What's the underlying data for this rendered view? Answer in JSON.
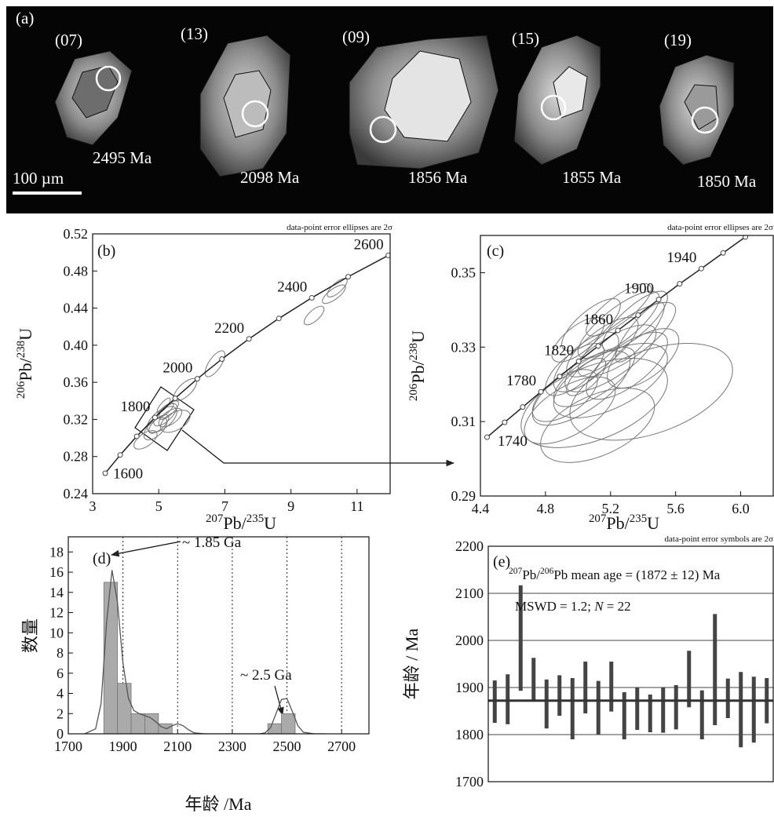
{
  "cl_image": {
    "panel_label": "(a)",
    "scale_bar": "100 µm",
    "grains": [
      {
        "spot": "(07)",
        "age": "2495 Ma"
      },
      {
        "spot": "(13)",
        "age": "2098 Ma"
      },
      {
        "spot": "(09)",
        "age": "1856 Ma"
      },
      {
        "spot": "(15)",
        "age": "1855 Ma"
      },
      {
        "spot": "(19)",
        "age": "1850 Ma"
      }
    ]
  },
  "chart_data": [
    {
      "type": "concordia",
      "panel_label": "(b)",
      "note": "data-point error ellipses are 2σ",
      "x_label": [
        {
          "text": "207",
          "sup": true
        },
        {
          "text": "Pb/"
        },
        {
          "text": "235",
          "sup": true
        },
        {
          "text": "U"
        }
      ],
      "y_label": [
        {
          "text": "206",
          "sup": true
        },
        {
          "text": "Pb/"
        },
        {
          "text": "238",
          "sup": true
        },
        {
          "text": "U"
        }
      ],
      "xlim": [
        3,
        12
      ],
      "xticks": [
        3,
        5,
        7,
        9,
        11
      ],
      "ylim": [
        0.24,
        0.52
      ],
      "yticks": [
        0.24,
        0.28,
        0.32,
        0.36,
        {
          "value": 0.4,
          "label": "0.40"
        },
        0.44,
        0.48,
        0.52
      ],
      "concordia": {
        "x": [
          3.381,
          3.834,
          4.335,
          4.887,
          5.496,
          6.168,
          6.911,
          7.729,
          8.633,
          9.63,
          10.73,
          11.944
        ],
        "y": [
          0.262,
          0.2817,
          0.3018,
          0.3221,
          0.3428,
          0.3638,
          0.3851,
          0.4068,
          0.4288,
          0.4511,
          0.4738,
          0.4968
        ],
        "labels": [
          null,
          1600,
          null,
          1800,
          null,
          2000,
          null,
          2200,
          null,
          2400,
          null,
          2600
        ]
      },
      "ellipses": {
        "x": [
          5.2,
          5.1,
          5.3,
          5.0,
          5.2,
          5.35,
          5.15,
          4.9,
          5.5,
          4.6,
          5.8,
          6.7,
          9.7,
          10.3,
          10.4
        ],
        "y": [
          0.325,
          0.32,
          0.33,
          0.315,
          0.33,
          0.322,
          0.335,
          0.31,
          0.318,
          0.298,
          0.352,
          0.38,
          0.432,
          0.455,
          0.462
        ],
        "sx": [
          0.35,
          0.45,
          0.3,
          0.3,
          0.25,
          0.35,
          0.2,
          0.35,
          0.45,
          0.35,
          0.35,
          0.3,
          0.3,
          0.35,
          0.3
        ],
        "sy": [
          0.012,
          0.014,
          0.01,
          0.01,
          0.008,
          0.01,
          0.008,
          0.012,
          0.012,
          0.01,
          0.012,
          0.014,
          0.01,
          0.01,
          0.01
        ],
        "rho": [
          0.7,
          0.6,
          0.75,
          0.7,
          0.8,
          0.6,
          0.8,
          0.6,
          0.5,
          0.6,
          0.7,
          0.7,
          0.7,
          0.75,
          0.75
        ]
      },
      "color": "#777777"
    },
    {
      "type": "concordia",
      "panel_label": "(c)",
      "note": "data-point error ellipses are 2σ",
      "x_label": [
        {
          "text": "207",
          "sup": true
        },
        {
          "text": "Pb/"
        },
        {
          "text": "235",
          "sup": true
        },
        {
          "text": "U"
        }
      ],
      "y_label": [
        {
          "text": "206",
          "sup": true
        },
        {
          "text": "Pb/"
        },
        {
          "text": "238",
          "sup": true
        },
        {
          "text": "U"
        }
      ],
      "xlim": [
        4.4,
        6.2
      ],
      "xticks": [
        4.4,
        4.8,
        5.2,
        5.6,
        {
          "value": 6,
          "label": "6.0"
        }
      ],
      "ylim": [
        0.29,
        0.36
      ],
      "yticks": [
        0.29,
        0.31,
        0.33,
        0.35
      ],
      "concordia": {
        "x": [
          4.441,
          4.549,
          4.66,
          4.772,
          4.887,
          5.004,
          5.124,
          5.245,
          5.369,
          5.496,
          5.625,
          5.758,
          5.892,
          6.029
        ],
        "y": [
          0.3058,
          0.3098,
          0.3139,
          0.318,
          0.3221,
          0.3262,
          0.3303,
          0.3345,
          0.3386,
          0.3428,
          0.347,
          0.3511,
          0.3553,
          0.3596
        ],
        "labels": [
          null,
          1740,
          null,
          1780,
          null,
          1820,
          null,
          1860,
          null,
          1900,
          null,
          1940,
          null,
          null
        ]
      },
      "ellipses": {
        "x": [
          5.02,
          5.1,
          5.2,
          5.3,
          5.25,
          5.15,
          4.98,
          5.35,
          5.05,
          5.4,
          5.1,
          5.45,
          4.95,
          5.2,
          5.0,
          5.25,
          5.12,
          4.92,
          5.3,
          5.08,
          5.38,
          5.05
        ],
        "y": [
          0.319,
          0.322,
          0.327,
          0.332,
          0.336,
          0.33,
          0.324,
          0.337,
          0.326,
          0.327,
          0.315,
          0.318,
          0.313,
          0.321,
          0.332,
          0.34,
          0.309,
          0.317,
          0.325,
          0.336,
          0.334,
          0.322
        ],
        "sx": [
          0.3,
          0.25,
          0.28,
          0.3,
          0.25,
          0.22,
          0.18,
          0.2,
          0.2,
          0.22,
          0.45,
          0.5,
          0.28,
          0.35,
          0.16,
          0.2,
          0.35,
          0.2,
          0.25,
          0.18,
          0.15,
          0.12
        ],
        "sy": [
          0.01,
          0.008,
          0.009,
          0.01,
          0.009,
          0.008,
          0.007,
          0.008,
          0.008,
          0.008,
          0.012,
          0.013,
          0.009,
          0.01,
          0.006,
          0.007,
          0.01,
          0.007,
          0.009,
          0.007,
          0.008,
          0.005
        ],
        "rho": [
          0.7,
          0.7,
          0.75,
          0.8,
          0.8,
          0.75,
          0.7,
          0.8,
          0.7,
          0.6,
          0.5,
          0.45,
          0.6,
          0.6,
          0.7,
          0.8,
          0.5,
          0.6,
          0.7,
          0.75,
          0.85,
          0.7
        ]
      },
      "color": "#777777"
    },
    {
      "type": "histogram",
      "panel_label": "(d)",
      "x_label": "年龄 /Ma",
      "y_label": "数量",
      "bins": [
        1830,
        1880,
        1930,
        1980,
        2030,
        2080,
        2130,
        2180,
        2230,
        2280,
        2330,
        2380,
        2430,
        2480,
        2530
      ],
      "values": [
        15,
        5,
        2,
        2,
        1,
        0,
        0,
        0,
        0,
        0,
        0,
        0,
        1,
        2
      ],
      "color": "#aaaaaa",
      "density": {
        "x": [
          1760,
          1800,
          1820,
          1840,
          1860,
          1880,
          1900,
          1920,
          1940,
          1960,
          1980,
          2000,
          2020,
          2040,
          2060,
          2080,
          2100,
          2120,
          2140,
          2160,
          2200,
          2300,
          2400,
          2420,
          2440,
          2460,
          2480,
          2500,
          2520,
          2540,
          2560,
          2600,
          2640
        ],
        "values": [
          0,
          0.5,
          3,
          11,
          16.2,
          13,
          7,
          3.5,
          2.3,
          2,
          1.8,
          1.6,
          1.2,
          0.7,
          0.5,
          0.8,
          1.0,
          0.8,
          0.4,
          0.1,
          0,
          0,
          0,
          0.1,
          0.6,
          2.0,
          3.4,
          3.5,
          2.2,
          0.8,
          0.15,
          0,
          0
        ],
        "color": "#555555"
      },
      "xlim": [
        1700,
        2800
      ],
      "xticks": [
        1700,
        1900,
        2100,
        2300,
        2500,
        2700
      ],
      "ylim": [
        0,
        19.5
      ],
      "yticks": [
        0,
        2,
        4,
        6,
        8,
        10,
        12,
        14,
        16,
        18
      ],
      "grid": true,
      "annotations": [
        "~ 1.85 Ga",
        "~ 2.5 Ga"
      ]
    },
    {
      "type": "errorbar",
      "panel_label": "(e)",
      "note": "data-point error symbols are 2σ",
      "y_label": "年龄 / Ma",
      "ylim": [
        1700,
        2200
      ],
      "yticks": [
        1700,
        1800,
        1900,
        2000,
        2100,
        2200
      ],
      "grid": true,
      "values": [
        1870,
        1875,
        2005,
        1918,
        1865,
        1883,
        1855,
        1900,
        1857,
        1902,
        1840,
        1855,
        1845,
        1852,
        1858,
        1918,
        1842,
        1938,
        1877,
        1853,
        1853,
        1872
      ],
      "errors": [
        45,
        53,
        112,
        45,
        52,
        43,
        65,
        55,
        57,
        53,
        50,
        45,
        40,
        48,
        47,
        60,
        52,
        118,
        42,
        80,
        70,
        48
      ],
      "mean": 1872,
      "mean_error": 12,
      "color": "#444444",
      "mean_text": [
        {
          "text": "207",
          "sup": true
        },
        {
          "text": "Pb/"
        },
        {
          "text": "206",
          "sup": true
        },
        {
          "text": "Pb mean age = (1872 ± 12) Ma"
        }
      ],
      "mswd_text": [
        {
          "text": "MSWD = 1.2; "
        },
        {
          "text": "N",
          "italic": true
        },
        {
          "text": " = 22"
        }
      ]
    }
  ]
}
